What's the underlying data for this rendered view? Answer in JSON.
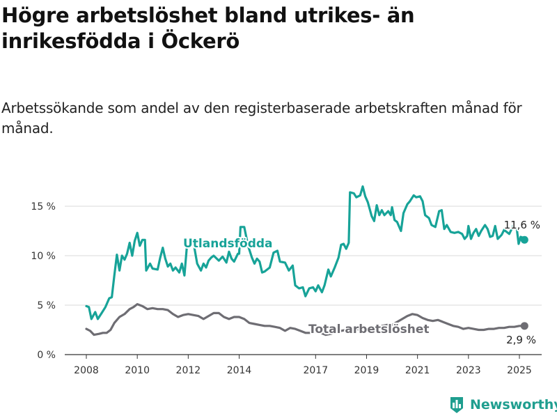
{
  "header": {
    "title": "Högre arbetslöshet bland utrikes- än inrikesfödda i Öckerö",
    "subtitle": "Arbetssökande som andel av den registerbaserade arbetskraften månad för månad."
  },
  "brand": {
    "name": "Newsworthy",
    "icon": "bar-chart-logo-icon",
    "color": "#1f9e8f"
  },
  "chart_data": {
    "type": "line",
    "xlim": [
      2008,
      2025.5
    ],
    "ylim": [
      0,
      17.5
    ],
    "grid": true,
    "xticks": [
      {
        "value": 2008,
        "label": "2008"
      },
      {
        "value": 2010,
        "label": "2010"
      },
      {
        "value": 2012,
        "label": "2012"
      },
      {
        "value": 2014,
        "label": "2014"
      },
      {
        "value": 2017,
        "label": "2017"
      },
      {
        "value": 2019,
        "label": "2019"
      },
      {
        "value": 2021,
        "label": "2021"
      },
      {
        "value": 2023,
        "label": "2023"
      },
      {
        "value": 2025,
        "label": "2025"
      }
    ],
    "yticks": [
      {
        "value": 0,
        "label": "0 %"
      },
      {
        "value": 5,
        "label": "5 %"
      },
      {
        "value": 10,
        "label": "10 %"
      },
      {
        "value": 15,
        "label": "15 %"
      }
    ],
    "series": [
      {
        "name": "Utlandsfödda",
        "color": "#17a398",
        "end_label": "11,6 %",
        "points": [
          [
            2008.0,
            4.9
          ],
          [
            2008.1,
            4.8
          ],
          [
            2008.2,
            3.6
          ],
          [
            2008.35,
            4.3
          ],
          [
            2008.45,
            3.6
          ],
          [
            2008.6,
            4.2
          ],
          [
            2008.75,
            4.8
          ],
          [
            2008.9,
            5.7
          ],
          [
            2009.0,
            5.8
          ],
          [
            2009.1,
            8.0
          ],
          [
            2009.2,
            10.1
          ],
          [
            2009.3,
            8.5
          ],
          [
            2009.4,
            10.0
          ],
          [
            2009.5,
            9.6
          ],
          [
            2009.6,
            10.2
          ],
          [
            2009.7,
            11.3
          ],
          [
            2009.8,
            10.0
          ],
          [
            2009.9,
            11.5
          ],
          [
            2010.0,
            12.3
          ],
          [
            2010.1,
            11.0
          ],
          [
            2010.2,
            11.6
          ],
          [
            2010.3,
            11.6
          ],
          [
            2010.35,
            8.5
          ],
          [
            2010.5,
            9.2
          ],
          [
            2010.6,
            8.7
          ],
          [
            2010.8,
            8.6
          ],
          [
            2010.9,
            9.8
          ],
          [
            2011.0,
            10.8
          ],
          [
            2011.1,
            9.7
          ],
          [
            2011.2,
            8.9
          ],
          [
            2011.3,
            9.2
          ],
          [
            2011.4,
            8.5
          ],
          [
            2011.5,
            8.8
          ],
          [
            2011.65,
            8.3
          ],
          [
            2011.75,
            9.2
          ],
          [
            2011.85,
            8.0
          ],
          [
            2011.95,
            11.0
          ],
          [
            2012.1,
            11.0
          ],
          [
            2012.2,
            11.4
          ],
          [
            2012.35,
            9.2
          ],
          [
            2012.5,
            8.5
          ],
          [
            2012.6,
            9.2
          ],
          [
            2012.7,
            8.8
          ],
          [
            2012.8,
            9.5
          ],
          [
            2012.9,
            9.8
          ],
          [
            2013.0,
            10.0
          ],
          [
            2013.2,
            9.5
          ],
          [
            2013.35,
            9.9
          ],
          [
            2013.5,
            9.3
          ],
          [
            2013.6,
            10.4
          ],
          [
            2013.7,
            9.7
          ],
          [
            2013.8,
            9.4
          ],
          [
            2013.95,
            10.2
          ],
          [
            2014.0,
            10.2
          ],
          [
            2014.05,
            12.9
          ],
          [
            2014.2,
            12.9
          ],
          [
            2014.35,
            11.0
          ],
          [
            2014.5,
            9.8
          ],
          [
            2014.6,
            9.2
          ],
          [
            2014.7,
            9.7
          ],
          [
            2014.8,
            9.4
          ],
          [
            2014.9,
            8.3
          ],
          [
            2015.0,
            8.4
          ],
          [
            2015.2,
            8.8
          ],
          [
            2015.35,
            10.3
          ],
          [
            2015.5,
            10.5
          ],
          [
            2015.6,
            9.4
          ],
          [
            2015.8,
            9.3
          ],
          [
            2015.95,
            8.5
          ],
          [
            2016.1,
            9.0
          ],
          [
            2016.2,
            7.0
          ],
          [
            2016.35,
            6.7
          ],
          [
            2016.5,
            6.8
          ],
          [
            2016.6,
            5.9
          ],
          [
            2016.75,
            6.7
          ],
          [
            2016.9,
            6.8
          ],
          [
            2017.0,
            6.4
          ],
          [
            2017.1,
            7.0
          ],
          [
            2017.25,
            6.3
          ],
          [
            2017.35,
            7.0
          ],
          [
            2017.5,
            8.6
          ],
          [
            2017.6,
            7.9
          ],
          [
            2017.75,
            8.8
          ],
          [
            2017.9,
            9.8
          ],
          [
            2018.0,
            11.1
          ],
          [
            2018.1,
            11.2
          ],
          [
            2018.2,
            10.7
          ],
          [
            2018.3,
            11.3
          ],
          [
            2018.35,
            16.4
          ],
          [
            2018.5,
            16.3
          ],
          [
            2018.6,
            15.9
          ],
          [
            2018.75,
            16.1
          ],
          [
            2018.85,
            17.0
          ],
          [
            2018.95,
            16.0
          ],
          [
            2019.05,
            15.4
          ],
          [
            2019.2,
            14.0
          ],
          [
            2019.3,
            13.5
          ],
          [
            2019.4,
            15.1
          ],
          [
            2019.5,
            14.1
          ],
          [
            2019.6,
            14.6
          ],
          [
            2019.7,
            14.1
          ],
          [
            2019.85,
            14.5
          ],
          [
            2019.95,
            14.1
          ],
          [
            2020.0,
            14.9
          ],
          [
            2020.1,
            13.6
          ],
          [
            2020.2,
            13.4
          ],
          [
            2020.35,
            12.5
          ],
          [
            2020.45,
            14.3
          ],
          [
            2020.6,
            15.2
          ],
          [
            2020.7,
            15.5
          ],
          [
            2020.85,
            16.1
          ],
          [
            2020.95,
            15.9
          ],
          [
            2021.1,
            16.0
          ],
          [
            2021.2,
            15.5
          ],
          [
            2021.3,
            14.1
          ],
          [
            2021.45,
            13.8
          ],
          [
            2021.55,
            13.1
          ],
          [
            2021.7,
            12.9
          ],
          [
            2021.85,
            14.5
          ],
          [
            2021.95,
            14.6
          ],
          [
            2022.05,
            12.7
          ],
          [
            2022.15,
            13.1
          ],
          [
            2022.3,
            12.4
          ],
          [
            2022.45,
            12.3
          ],
          [
            2022.6,
            12.4
          ],
          [
            2022.75,
            12.2
          ],
          [
            2022.85,
            11.7
          ],
          [
            2022.95,
            12.0
          ],
          [
            2023.0,
            13.0
          ],
          [
            2023.1,
            11.7
          ],
          [
            2023.2,
            12.3
          ],
          [
            2023.3,
            12.7
          ],
          [
            2023.4,
            12.0
          ],
          [
            2023.5,
            12.5
          ],
          [
            2023.65,
            13.1
          ],
          [
            2023.75,
            12.7
          ],
          [
            2023.85,
            11.9
          ],
          [
            2023.95,
            12.0
          ],
          [
            2024.05,
            13.0
          ],
          [
            2024.15,
            11.7
          ],
          [
            2024.3,
            12.1
          ],
          [
            2024.4,
            12.6
          ],
          [
            2024.5,
            12.4
          ],
          [
            2024.6,
            12.2
          ],
          [
            2024.75,
            13.0
          ],
          [
            2024.9,
            12.7
          ],
          [
            2024.97,
            11.2
          ],
          [
            2025.05,
            11.9
          ],
          [
            2025.15,
            11.8
          ],
          [
            2025.2,
            11.6
          ]
        ]
      },
      {
        "name": "Total arbetslöshet",
        "color": "#6e6d73",
        "end_label": "2,9 %",
        "points": [
          [
            2008.0,
            2.6
          ],
          [
            2008.15,
            2.4
          ],
          [
            2008.3,
            2.0
          ],
          [
            2008.5,
            2.1
          ],
          [
            2008.65,
            2.2
          ],
          [
            2008.8,
            2.2
          ],
          [
            2008.95,
            2.5
          ],
          [
            2009.1,
            3.2
          ],
          [
            2009.3,
            3.8
          ],
          [
            2009.5,
            4.1
          ],
          [
            2009.7,
            4.6
          ],
          [
            2009.85,
            4.8
          ],
          [
            2010.0,
            5.1
          ],
          [
            2010.2,
            4.9
          ],
          [
            2010.4,
            4.6
          ],
          [
            2010.6,
            4.7
          ],
          [
            2010.8,
            4.6
          ],
          [
            2011.0,
            4.6
          ],
          [
            2011.2,
            4.5
          ],
          [
            2011.4,
            4.1
          ],
          [
            2011.6,
            3.8
          ],
          [
            2011.8,
            4.0
          ],
          [
            2012.0,
            4.1
          ],
          [
            2012.2,
            4.0
          ],
          [
            2012.4,
            3.9
          ],
          [
            2012.6,
            3.6
          ],
          [
            2012.8,
            3.9
          ],
          [
            2013.0,
            4.2
          ],
          [
            2013.2,
            4.2
          ],
          [
            2013.4,
            3.8
          ],
          [
            2013.6,
            3.6
          ],
          [
            2013.8,
            3.8
          ],
          [
            2014.0,
            3.8
          ],
          [
            2014.2,
            3.6
          ],
          [
            2014.4,
            3.2
          ],
          [
            2014.6,
            3.1
          ],
          [
            2014.8,
            3.0
          ],
          [
            2015.0,
            2.9
          ],
          [
            2015.2,
            2.9
          ],
          [
            2015.4,
            2.8
          ],
          [
            2015.6,
            2.7
          ],
          [
            2015.8,
            2.4
          ],
          [
            2016.0,
            2.7
          ],
          [
            2016.2,
            2.6
          ],
          [
            2016.4,
            2.4
          ],
          [
            2016.6,
            2.2
          ],
          [
            2016.8,
            2.2
          ],
          [
            2017.0,
            2.3
          ],
          [
            2017.2,
            2.2
          ],
          [
            2017.4,
            2.0
          ],
          [
            2017.6,
            2.1
          ],
          [
            2017.8,
            2.3
          ],
          [
            2018.0,
            2.4
          ],
          [
            2018.2,
            2.5
          ],
          [
            2018.4,
            2.6
          ],
          [
            2018.6,
            2.6
          ],
          [
            2018.8,
            2.5
          ],
          [
            2019.0,
            2.4
          ],
          [
            2019.2,
            2.3
          ],
          [
            2019.4,
            2.5
          ],
          [
            2019.6,
            2.9
          ],
          [
            2019.8,
            3.0
          ],
          [
            2020.0,
            3.0
          ],
          [
            2020.2,
            3.3
          ],
          [
            2020.4,
            3.6
          ],
          [
            2020.6,
            3.9
          ],
          [
            2020.8,
            4.1
          ],
          [
            2021.0,
            4.0
          ],
          [
            2021.2,
            3.7
          ],
          [
            2021.4,
            3.5
          ],
          [
            2021.6,
            3.4
          ],
          [
            2021.8,
            3.5
          ],
          [
            2022.0,
            3.3
          ],
          [
            2022.2,
            3.1
          ],
          [
            2022.4,
            2.9
          ],
          [
            2022.6,
            2.8
          ],
          [
            2022.8,
            2.6
          ],
          [
            2023.0,
            2.7
          ],
          [
            2023.2,
            2.6
          ],
          [
            2023.4,
            2.5
          ],
          [
            2023.6,
            2.5
          ],
          [
            2023.8,
            2.6
          ],
          [
            2024.0,
            2.6
          ],
          [
            2024.2,
            2.7
          ],
          [
            2024.4,
            2.7
          ],
          [
            2024.6,
            2.8
          ],
          [
            2024.8,
            2.8
          ],
          [
            2025.0,
            2.9
          ],
          [
            2025.2,
            2.9
          ]
        ]
      }
    ]
  }
}
